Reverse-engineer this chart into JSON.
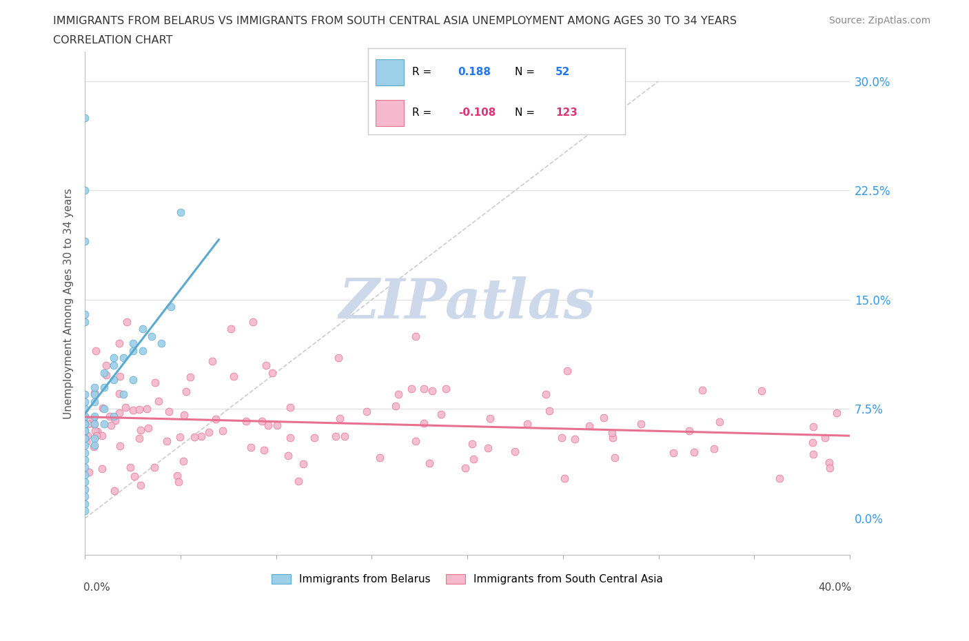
{
  "title_line1": "IMMIGRANTS FROM BELARUS VS IMMIGRANTS FROM SOUTH CENTRAL ASIA UNEMPLOYMENT AMONG AGES 30 TO 34 YEARS",
  "title_line2": "CORRELATION CHART",
  "source": "Source: ZipAtlas.com",
  "ylabel": "Unemployment Among Ages 30 to 34 years",
  "ytick_values": [
    0.0,
    7.5,
    15.0,
    22.5,
    30.0
  ],
  "xmin": 0.0,
  "xmax": 40.0,
  "ymin": -2.5,
  "ymax": 32.0,
  "legend_R_belarus": "0.188",
  "legend_N_belarus": "52",
  "legend_R_asia": "-0.108",
  "legend_N_asia": "123",
  "color_belarus": "#9ecfe8",
  "color_asia": "#f5b8cc",
  "color_trendline_belarus": "#5aaad0",
  "color_trendline_asia": "#e87090",
  "color_diagonal": "#cccccc",
  "watermark": "ZIPatlas",
  "watermark_color": "#cdd8ea",
  "label_belarus": "Immigrants from Belarus",
  "label_asia": "Immigrants from South Central Asia"
}
